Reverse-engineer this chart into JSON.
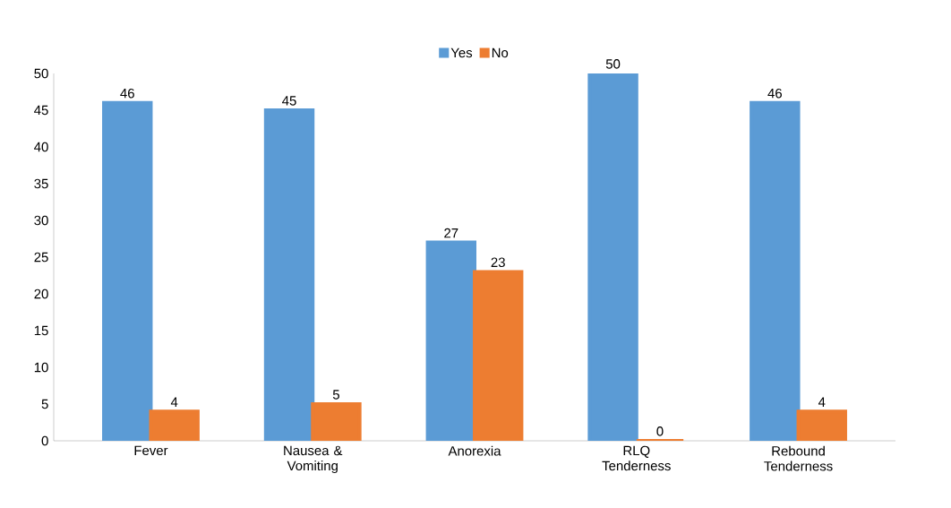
{
  "chart_data": {
    "type": "bar",
    "categories": [
      "Fever",
      "Nausea & Vomiting",
      "Anorexia",
      "RLQ Tenderness",
      "Rebound Tenderness"
    ],
    "series": [
      {
        "name": "Yes",
        "color": "#5b9bd5",
        "values": [
          46,
          45,
          27,
          50,
          46
        ]
      },
      {
        "name": "No",
        "color": "#ed7d31",
        "values": [
          4,
          5,
          23,
          0,
          4
        ]
      }
    ],
    "ylim": [
      0,
      50
    ],
    "yticks": [
      0,
      5,
      10,
      15,
      20,
      25,
      30,
      35,
      40,
      45,
      50
    ],
    "legend": "top",
    "grid": false,
    "data_labels": true
  }
}
